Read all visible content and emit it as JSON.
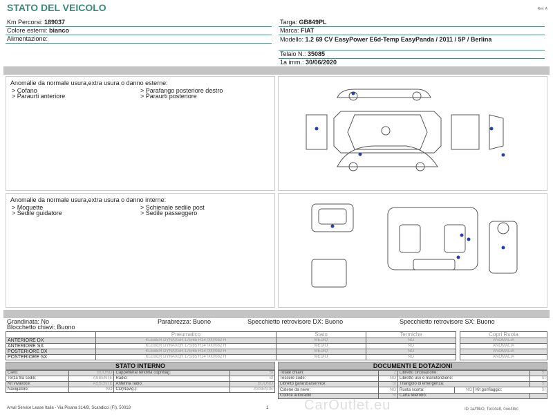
{
  "header": {
    "title": "STATO DEL VEICOLO",
    "rev": "Rev. A"
  },
  "vehicle_left": [
    {
      "label": "Km Percorsi: ",
      "value": "189037"
    },
    {
      "label": "Colore esterni: ",
      "value": "bianco"
    },
    {
      "label": "Alimentazione:",
      "value": ""
    }
  ],
  "vehicle_right": [
    {
      "label": "Targa: ",
      "value": "GB849PL"
    },
    {
      "label": "Marca: ",
      "value": "FIAT"
    },
    {
      "label": "Modello: ",
      "value": "1.2 69 CV EasyPower E6d-Temp EasyPanda / 2011 / 5P / Berlina"
    },
    {
      "label": "Telaio N.: ",
      "value": "35085"
    },
    {
      "label": "1a imm.: ",
      "value": "30/06/2020"
    }
  ],
  "exterior": {
    "heading": "Anomalie da normale usura,extra usura o danno esterne:",
    "col1": [
      "> Cofano",
      "> Paraurti anteriore"
    ],
    "col2": [
      "> Parafango posteriore destro",
      "> Paraurti posteriore"
    ]
  },
  "interior": {
    "heading": "Anomalie da normale usura,extra usura o danno interne:",
    "col1": [
      "> Moquette",
      "> Sedile guidatore"
    ],
    "col2": [
      "> Schienale sedile post",
      "> Sedile passeggero"
    ]
  },
  "attributes": {
    "grandinata": "Grandinata: No",
    "blocchetto": "Blocchetto chiavi: Buono",
    "parabrezza": "Parabrezza: Buono",
    "spec_dx": "Specchietto retrovisore DX: Buono",
    "spec_sx": "Specchietto retrovisore SX: Buono"
  },
  "tyres": {
    "headers": [
      "Pneumatico",
      "Stato",
      "Termiche",
      "Copri Ruota"
    ],
    "rows": [
      {
        "pos": "ANTERIORE DX",
        "tyre": "KLEBER DYNAXER 175/65 R14 000/082 H",
        "stato": "MEDIO",
        "termiche": "NO",
        "copri": "ANOMALIA"
      },
      {
        "pos": "ANTERIORE SX",
        "tyre": "KLEBER DYNAXER 175/65 R14 000/082 H",
        "stato": "MEDIO",
        "termiche": "NO",
        "copri": "ANOMALIA"
      },
      {
        "pos": "POSTERIORE DX",
        "tyre": "KLEBER DYNAXER 175/65 R14 000/082 H",
        "stato": "MEDIO",
        "termiche": "NO",
        "copri": "ANOMALIA"
      },
      {
        "pos": "POSTERIORE SX",
        "tyre": "KLEBER DYNAXER 175/65 R14 000/082 H",
        "stato": "MEDIO",
        "termiche": "NO",
        "copri": "ANOMALIA"
      }
    ]
  },
  "stato_interno": {
    "title": "STATO INTERNO",
    "rows": [
      [
        "Cielo:",
        "BUONO",
        "Cappelliera/Tendina copribag:",
        "SI"
      ],
      [
        "Terza fila sedili:",
        "ASSENTE",
        "Radio:",
        "SI"
      ],
      [
        "Kit vivavoce:",
        "ASSENTE",
        "Antenna radio:",
        "BUONO"
      ],
      [
        "Navigatore:",
        "NO",
        "CD(Navig.):",
        "ASSENTE"
      ]
    ]
  },
  "documenti": {
    "title": "DOCUMENTI E DOTAZIONI",
    "rows": [
      [
        "Totale chiavi:",
        "2",
        "Libretto circolazione:",
        "SI"
      ],
      [
        "Tessere code:",
        "NO",
        "Libretto uso e manutenzione:",
        "SI"
      ],
      [
        "Libretto garanzia/service:",
        "SI",
        "Triangolo di emergenza:",
        "SI"
      ],
      [
        "Catene da neve:",
        "NO",
        "Ruota scorta:",
        "NO"
      ],
      [
        "Codice autoradio:",
        "SI",
        "Carta telefono:",
        ""
      ]
    ],
    "kit_label": "Kit gonfiaggio:",
    "kit_value": "SI"
  },
  "footer": {
    "address": "Arval Service Lease Italia - Via Pisana 314/B, Scandicci (FI), 50018",
    "page": "1",
    "watermark": "CarOutlet.eu",
    "right_text": "ID 1a/f9kO, Tec/4e8, 0oo48rc"
  },
  "colors": {
    "accent": "#3a8a7a",
    "damage_dot": "#2a3fa8",
    "band": "#c4c4c4"
  }
}
